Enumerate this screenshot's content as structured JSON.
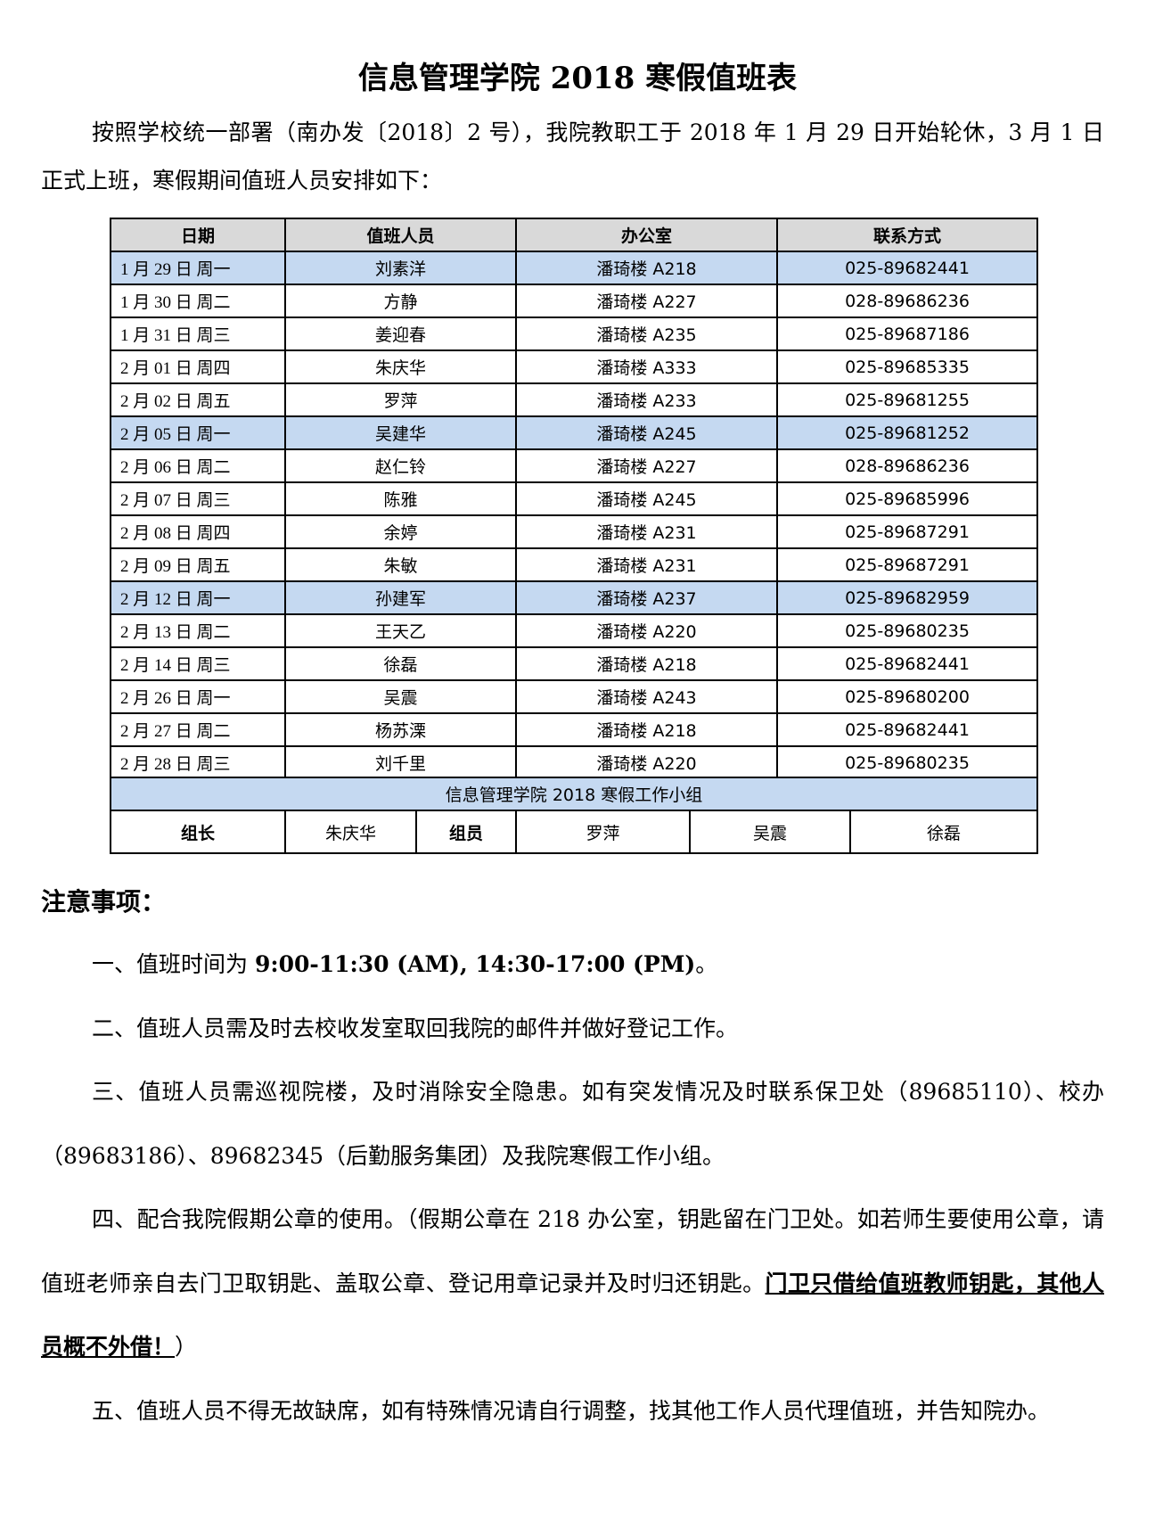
{
  "title": "信息管理学院 2018 寒假值班表",
  "intro": "按照学校统一部署（南办发〔2018〕2 号），我院教职工于 2018 年 1 月 29 日开始轮休，3 月 1 日正式上班，寒假期间值班人员安排如下：",
  "table": {
    "headers": [
      "日期",
      "值班人员",
      "办公室",
      "联系方式"
    ],
    "highlight_color": "#c5d9f1",
    "rows": [
      {
        "date": "1 月 29 日  周一",
        "person": "刘素洋",
        "office": "潘琦楼 A218",
        "phone": "025-89682441",
        "hl": true
      },
      {
        "date": "1 月 30 日  周二",
        "person": "方静",
        "office": "潘琦楼 A227",
        "phone": "028-89686236"
      },
      {
        "date": "1 月 31 日  周三",
        "person": "姜迎春",
        "office": "潘琦楼 A235",
        "phone": "025-89687186"
      },
      {
        "date": "2 月 01 日  周四",
        "person": "朱庆华",
        "office": "潘琦楼 A333",
        "phone": "025-89685335"
      },
      {
        "date": "2 月 02 日  周五",
        "person": "罗萍",
        "office": "潘琦楼 A233",
        "phone": "025-89681255"
      },
      {
        "date": "2 月 05 日  周一",
        "person": "吴建华",
        "office": "潘琦楼 A245",
        "phone": "025-89681252",
        "hl": true
      },
      {
        "date": "2 月 06 日  周二",
        "person": "赵仁铃",
        "office": "潘琦楼 A227",
        "phone": "028-89686236"
      },
      {
        "date": "2 月 07 日  周三",
        "person": "陈雅",
        "office": "潘琦楼 A245",
        "phone": "025-89685996"
      },
      {
        "date": "2 月 08 日  周四",
        "person": "余婷",
        "office": "潘琦楼 A231",
        "phone": "025-89687291"
      },
      {
        "date": "2 月 09 日  周五",
        "person": "朱敏",
        "office": "潘琦楼 A231",
        "phone": "025-89687291"
      },
      {
        "date": "2 月 12 日  周一",
        "person": "孙建军",
        "office": "潘琦楼 A237",
        "phone": "025-89682959",
        "hl": true
      },
      {
        "date": "2 月 13 日  周二",
        "person": "王天乙",
        "office": "潘琦楼 A220",
        "phone": "025-89680235"
      },
      {
        "date": "2 月 14 日  周三",
        "person": "徐磊",
        "office": "潘琦楼 A218",
        "phone": "025-89682441"
      },
      {
        "date": "2 月 26 日  周一",
        "person": "吴震",
        "office": "潘琦楼 A243",
        "phone": "025-89680200"
      },
      {
        "date": "2 月 27 日  周二",
        "person": "杨苏溧",
        "office": "潘琦楼 A218",
        "phone": "025-89682441"
      },
      {
        "date": "2 月 28 日  周三",
        "person": "刘千里",
        "office": "潘琦楼 A220",
        "phone": "025-89680235"
      }
    ]
  },
  "group": {
    "title": "信息管理学院 2018 寒假工作小组",
    "leader_label": "组长",
    "leader": "朱庆华",
    "member_label": "组员",
    "members": [
      "罗萍",
      "吴震",
      "徐磊"
    ]
  },
  "notes": {
    "heading": "注意事项：",
    "n1_pre": "一、值班时间为 ",
    "n1_bold": "9:00-11:30 (AM), 14:30-17:00 (PM)",
    "n1_post": "。",
    "n2": "二、值班人员需及时去校收发室取回我院的邮件并做好登记工作。",
    "n3": "三、值班人员需巡视院楼，及时消除安全隐患。如有突发情况及时联系保卫处（89685110）、校办（89683186）、89682345（后勤服务集团）及我院寒假工作小组。",
    "n4_pre": "四、配合我院假期公章的使用。（假期公章在 218 办公室，钥匙留在门卫处。如若师生要使用公章，请值班老师亲自去门卫取钥匙、盖取公章、登记用章记录并及时归还钥匙。",
    "n4_u": "门卫只借给值班教师钥匙，其他人员概不外借！",
    "n4_post": "）",
    "n5": "五、值班人员不得无故缺席，如有特殊情况请自行调整，找其他工作人员代理值班，并告知院办。"
  }
}
